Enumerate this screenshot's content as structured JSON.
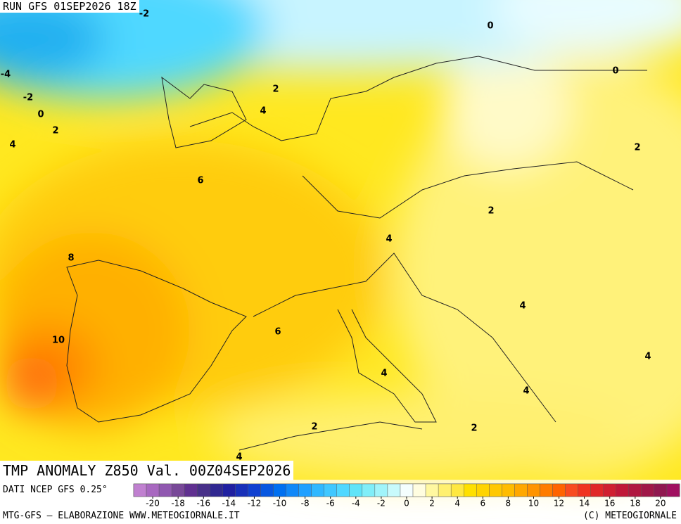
{
  "header": {
    "run": "RUN GFS 01SEP2026 18Z",
    "title": "TMP ANOMALY Z850 Val. 00Z04SEP2026"
  },
  "footer": {
    "source": "DATI NCEP GFS 0.25°",
    "credits": "MTG-GFS – ELABORAZIONE WWW.METEOGIORNALE.IT",
    "copyright": "(C) METEOGIORNALE"
  },
  "map": {
    "contour_labels": [
      -2,
      0,
      0,
      -4,
      -2,
      2,
      0,
      4,
      2,
      4,
      2,
      6,
      2,
      4,
      8,
      4,
      6,
      10,
      4,
      4,
      4,
      2,
      2,
      4
    ]
  },
  "colorbar": {
    "colors": [
      "#c080d0",
      "#a868c0",
      "#9058b0",
      "#784898",
      "#603090",
      "#483088",
      "#302890",
      "#2020a0",
      "#1830b8",
      "#1040d0",
      "#0858e0",
      "#0070f0",
      "#1088f8",
      "#20a0ff",
      "#30b8ff",
      "#40c8ff",
      "#50d8ff",
      "#60e4f8",
      "#80eef8",
      "#a0f4fa",
      "#c8fafc",
      "#f4fefe",
      "#fffde0",
      "#fff8a0",
      "#fff070",
      "#ffe840",
      "#ffe000",
      "#ffd400",
      "#ffc800",
      "#ffbc00",
      "#ffa800",
      "#ff9400",
      "#ff7c00",
      "#ff6400",
      "#f84c20",
      "#f03420",
      "#e02828",
      "#d02030",
      "#c01838",
      "#b01840",
      "#a01848",
      "#901850",
      "#a01060"
    ],
    "ticks": [
      -20,
      -18,
      -16,
      -14,
      -12,
      -10,
      -8,
      -6,
      -4,
      -2,
      0,
      2,
      4,
      6,
      8,
      10,
      12,
      14,
      16,
      18,
      20
    ],
    "range": [
      -21.5,
      21.5
    ]
  }
}
